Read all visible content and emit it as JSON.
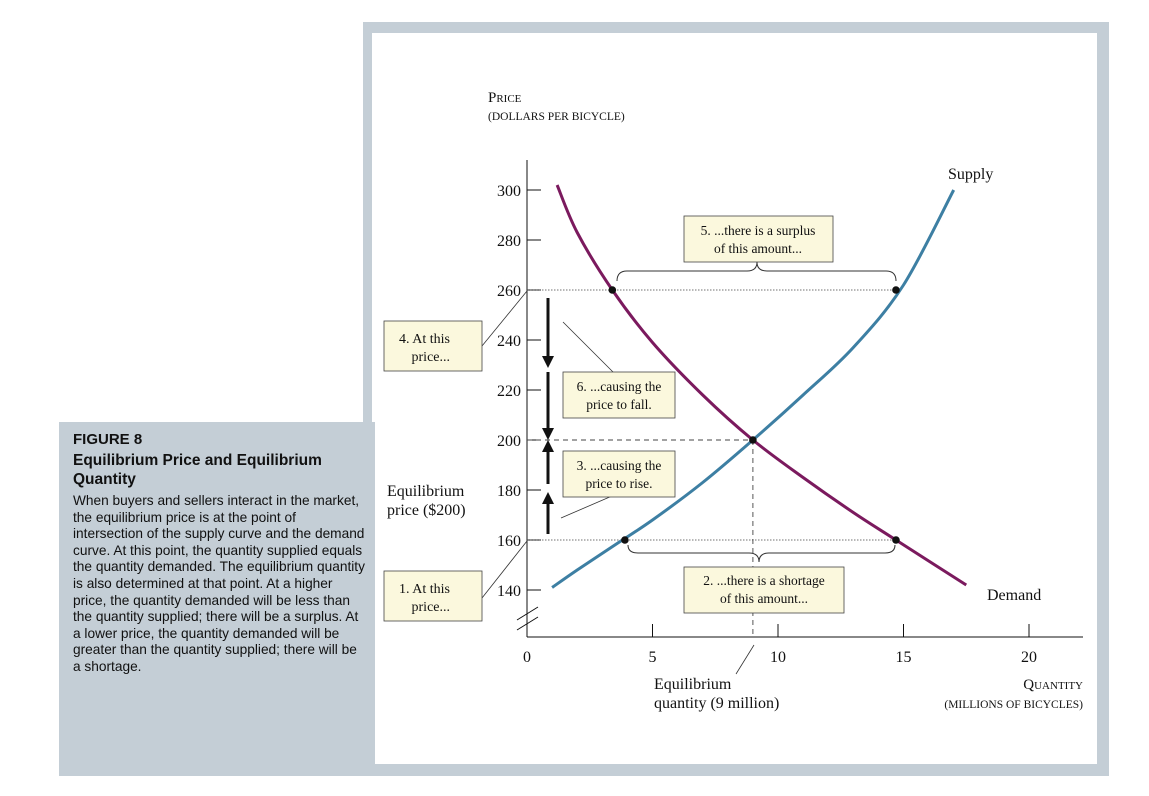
{
  "caption": {
    "label": "FIGURE 8",
    "title": "Equilibrium Price and Equilibrium Quantity",
    "body": "When buyers and sellers interact in the market, the equilibrium price is at the point of intersection of the supply curve and the demand curve. At this point, the quantity supplied equals the quantity demanded. The equilibrium quantity is also determined at that point. At a higher price, the quantity demanded will be less than the quantity supplied; there will be a surplus. At a lower price, the quantity demanded will be greater than the quantity supplied; there will be a shortage."
  },
  "chart_data": {
    "type": "line",
    "ylabel_line1": "Price",
    "ylabel_line2": "(DOLLARS PER BICYCLE)",
    "xlabel_line1": "Quantity",
    "xlabel_line2": "(MILLIONS OF BICYCLES)",
    "xlim": [
      0,
      22
    ],
    "ylim": [
      125,
      310
    ],
    "x_ticks": [
      0,
      5,
      10,
      15,
      20
    ],
    "y_ticks": [
      140,
      160,
      180,
      200,
      220,
      240,
      260,
      280,
      300
    ],
    "series": [
      {
        "name": "Supply",
        "color": "#3d7fa3",
        "x": [
          1,
          2,
          3.5,
          5,
          7,
          9,
          11,
          13,
          15,
          17
        ],
        "y": [
          141,
          148,
          158,
          168,
          183,
          200,
          218,
          237,
          262,
          300
        ]
      },
      {
        "name": "Demand",
        "color": "#7b1a5e",
        "x": [
          1.2,
          2,
          3.4,
          5,
          7,
          9,
          11,
          13,
          14.7,
          17.5
        ],
        "y": [
          302,
          283,
          260,
          239,
          218,
          200,
          185,
          171,
          160,
          142
        ]
      }
    ],
    "points": [
      {
        "x": 3.4,
        "y": 260
      },
      {
        "x": 14.7,
        "y": 260
      },
      {
        "x": 9,
        "y": 200
      },
      {
        "x": 3.9,
        "y": 160
      },
      {
        "x": 14.7,
        "y": 160
      }
    ],
    "equilibrium": {
      "price": 200,
      "quantity": 9
    },
    "annotations": {
      "price_high_1": "4. At this",
      "price_high_2": "price...",
      "price_low_1": "1. At this",
      "price_low_2": "price...",
      "surplus_1": "5. ...there is a surplus",
      "surplus_2": "of this amount...",
      "shortage_1": "2. ...there is a shortage",
      "shortage_2": "of this amount...",
      "fall_1": "6. ...causing the",
      "fall_2": "price to fall.",
      "rise_1": "3. ...causing the",
      "rise_2": "price to rise.",
      "eq_price_1": "Equilibrium",
      "eq_price_2": "price ($200)",
      "eq_qty_1": "Equilibrium",
      "eq_qty_2": "quantity (9 million)"
    }
  }
}
